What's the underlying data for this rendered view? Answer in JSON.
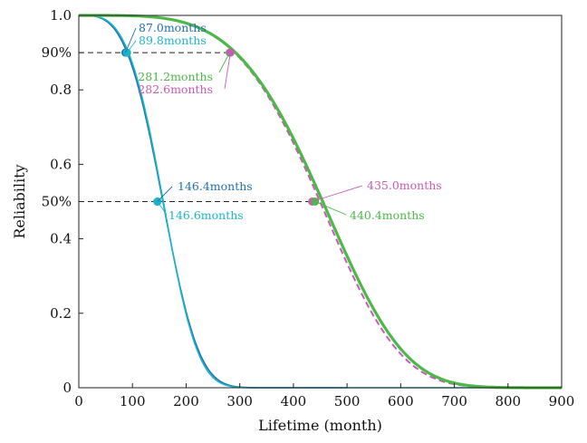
{
  "chart_data": {
    "type": "line",
    "xlabel": "Lifetime (month)",
    "ylabel": "Reliability",
    "xlim": [
      0,
      900
    ],
    "ylim": [
      0,
      1.0
    ],
    "grid": false,
    "x_ticks": [
      {
        "value": 0,
        "label": "0"
      },
      {
        "value": 100,
        "label": "100"
      },
      {
        "value": 200,
        "label": "200"
      },
      {
        "value": 300,
        "label": "300"
      },
      {
        "value": 400,
        "label": "400"
      },
      {
        "value": 500,
        "label": "500"
      },
      {
        "value": 600,
        "label": "600"
      },
      {
        "value": 700,
        "label": "700"
      },
      {
        "value": 800,
        "label": "800"
      },
      {
        "value": 900,
        "label": "900"
      }
    ],
    "y_ticks": [
      {
        "value": 0,
        "label": "0"
      },
      {
        "value": 0.2,
        "label": "0.2"
      },
      {
        "value": 0.4,
        "label": "0.4"
      },
      {
        "value": 0.5,
        "label": "50%"
      },
      {
        "value": 0.6,
        "label": "0.6"
      },
      {
        "value": 0.8,
        "label": "0.8"
      },
      {
        "value": 0.9,
        "label": "90%"
      },
      {
        "value": 1.0,
        "label": "1.0"
      }
    ],
    "reference_lines": [
      {
        "y": 0.9,
        "x_end": 282.6
      },
      {
        "y": 0.5,
        "x_end": 440.4
      }
    ],
    "series": [
      {
        "color": "#1f6fb2",
        "dashed": false,
        "width": 1.6,
        "eta": 174.6,
        "beta": 3.4,
        "x_end": 500
      },
      {
        "color": "#1bb5c9",
        "dashed": false,
        "width": 1.6,
        "eta": 174.6,
        "beta": 3.55,
        "x_end": 900
      },
      {
        "color": "#c95ab5",
        "dashed": true,
        "width": 2.0,
        "eta": 489.5,
        "beta": 4.3,
        "x_end": 900
      },
      {
        "color": "#4cb848",
        "dashed": false,
        "width": 3.2,
        "eta": 495.5,
        "beta": 4.26,
        "x_end": 900
      }
    ],
    "markers": [
      {
        "x": 87.0,
        "y": 0.9,
        "color": "#1f6fb2"
      },
      {
        "x": 89.8,
        "y": 0.9,
        "color": "#1bb5c9"
      },
      {
        "x": 146.4,
        "y": 0.5,
        "color": "#1f6fb2"
      },
      {
        "x": 146.6,
        "y": 0.5,
        "color": "#1bb5c9"
      },
      {
        "x": 281.2,
        "y": 0.9,
        "color": "#4cb848"
      },
      {
        "x": 282.6,
        "y": 0.9,
        "color": "#c95ab5"
      },
      {
        "x": 435.0,
        "y": 0.5,
        "color": "#c95ab5"
      },
      {
        "x": 440.4,
        "y": 0.5,
        "color": "#4cb848"
      }
    ],
    "annotations": [
      {
        "text": "87.0months",
        "color": "#1f6fb2",
        "x": 87.0,
        "y": 0.9
      },
      {
        "text": "89.8months",
        "color": "#1bb5c9",
        "x": 89.8,
        "y": 0.9
      },
      {
        "text": "281.2months",
        "color": "#4cb848",
        "x": 281.2,
        "y": 0.9
      },
      {
        "text": "282.6months",
        "color": "#c95ab5",
        "x": 282.6,
        "y": 0.9
      },
      {
        "text": "146.4months",
        "color": "#1f6fb2",
        "x": 146.4,
        "y": 0.5
      },
      {
        "text": "146.6months",
        "color": "#1bb5c9",
        "x": 146.6,
        "y": 0.5
      },
      {
        "text": "435.0months",
        "color": "#c95ab5",
        "x": 435.0,
        "y": 0.5
      },
      {
        "text": "440.4months",
        "color": "#4cb848",
        "x": 440.4,
        "y": 0.5
      }
    ]
  }
}
